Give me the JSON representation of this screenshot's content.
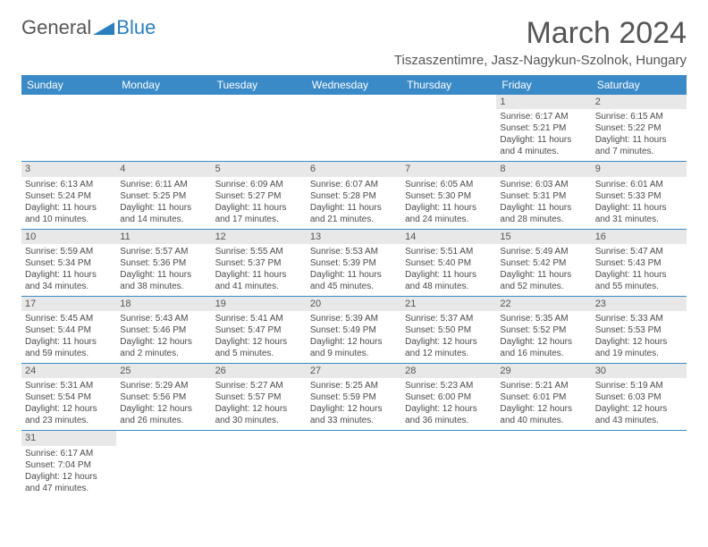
{
  "logo": {
    "text1": "General",
    "text2": "Blue"
  },
  "title": "March 2024",
  "location": "Tiszaszentimre, Jasz-Nagykun-Szolnok, Hungary",
  "colors": {
    "header_bg": "#3a8ac8",
    "header_text": "#ffffff",
    "daynum_bg": "#e8e8e8",
    "body_text": "#4a4a4a",
    "title_text": "#555555",
    "row_divider": "#3a8ac8",
    "background": "#ffffff",
    "logo_blue": "#2a7fbf"
  },
  "typography": {
    "title_fontsize": 34,
    "location_fontsize": 15,
    "dayheader_fontsize": 12,
    "cell_fontsize": 10,
    "font_family": "Arial"
  },
  "daysOfWeek": [
    "Sunday",
    "Monday",
    "Tuesday",
    "Wednesday",
    "Thursday",
    "Friday",
    "Saturday"
  ],
  "weeks": [
    [
      {
        "blank": true
      },
      {
        "blank": true
      },
      {
        "blank": true
      },
      {
        "blank": true
      },
      {
        "blank": true
      },
      {
        "n": "1",
        "sunrise": "Sunrise: 6:17 AM",
        "sunset": "Sunset: 5:21 PM",
        "day1": "Daylight: 11 hours",
        "day2": "and 4 minutes."
      },
      {
        "n": "2",
        "sunrise": "Sunrise: 6:15 AM",
        "sunset": "Sunset: 5:22 PM",
        "day1": "Daylight: 11 hours",
        "day2": "and 7 minutes."
      }
    ],
    [
      {
        "n": "3",
        "sunrise": "Sunrise: 6:13 AM",
        "sunset": "Sunset: 5:24 PM",
        "day1": "Daylight: 11 hours",
        "day2": "and 10 minutes."
      },
      {
        "n": "4",
        "sunrise": "Sunrise: 6:11 AM",
        "sunset": "Sunset: 5:25 PM",
        "day1": "Daylight: 11 hours",
        "day2": "and 14 minutes."
      },
      {
        "n": "5",
        "sunrise": "Sunrise: 6:09 AM",
        "sunset": "Sunset: 5:27 PM",
        "day1": "Daylight: 11 hours",
        "day2": "and 17 minutes."
      },
      {
        "n": "6",
        "sunrise": "Sunrise: 6:07 AM",
        "sunset": "Sunset: 5:28 PM",
        "day1": "Daylight: 11 hours",
        "day2": "and 21 minutes."
      },
      {
        "n": "7",
        "sunrise": "Sunrise: 6:05 AM",
        "sunset": "Sunset: 5:30 PM",
        "day1": "Daylight: 11 hours",
        "day2": "and 24 minutes."
      },
      {
        "n": "8",
        "sunrise": "Sunrise: 6:03 AM",
        "sunset": "Sunset: 5:31 PM",
        "day1": "Daylight: 11 hours",
        "day2": "and 28 minutes."
      },
      {
        "n": "9",
        "sunrise": "Sunrise: 6:01 AM",
        "sunset": "Sunset: 5:33 PM",
        "day1": "Daylight: 11 hours",
        "day2": "and 31 minutes."
      }
    ],
    [
      {
        "n": "10",
        "sunrise": "Sunrise: 5:59 AM",
        "sunset": "Sunset: 5:34 PM",
        "day1": "Daylight: 11 hours",
        "day2": "and 34 minutes."
      },
      {
        "n": "11",
        "sunrise": "Sunrise: 5:57 AM",
        "sunset": "Sunset: 5:36 PM",
        "day1": "Daylight: 11 hours",
        "day2": "and 38 minutes."
      },
      {
        "n": "12",
        "sunrise": "Sunrise: 5:55 AM",
        "sunset": "Sunset: 5:37 PM",
        "day1": "Daylight: 11 hours",
        "day2": "and 41 minutes."
      },
      {
        "n": "13",
        "sunrise": "Sunrise: 5:53 AM",
        "sunset": "Sunset: 5:39 PM",
        "day1": "Daylight: 11 hours",
        "day2": "and 45 minutes."
      },
      {
        "n": "14",
        "sunrise": "Sunrise: 5:51 AM",
        "sunset": "Sunset: 5:40 PM",
        "day1": "Daylight: 11 hours",
        "day2": "and 48 minutes."
      },
      {
        "n": "15",
        "sunrise": "Sunrise: 5:49 AM",
        "sunset": "Sunset: 5:42 PM",
        "day1": "Daylight: 11 hours",
        "day2": "and 52 minutes."
      },
      {
        "n": "16",
        "sunrise": "Sunrise: 5:47 AM",
        "sunset": "Sunset: 5:43 PM",
        "day1": "Daylight: 11 hours",
        "day2": "and 55 minutes."
      }
    ],
    [
      {
        "n": "17",
        "sunrise": "Sunrise: 5:45 AM",
        "sunset": "Sunset: 5:44 PM",
        "day1": "Daylight: 11 hours",
        "day2": "and 59 minutes."
      },
      {
        "n": "18",
        "sunrise": "Sunrise: 5:43 AM",
        "sunset": "Sunset: 5:46 PM",
        "day1": "Daylight: 12 hours",
        "day2": "and 2 minutes."
      },
      {
        "n": "19",
        "sunrise": "Sunrise: 5:41 AM",
        "sunset": "Sunset: 5:47 PM",
        "day1": "Daylight: 12 hours",
        "day2": "and 5 minutes."
      },
      {
        "n": "20",
        "sunrise": "Sunrise: 5:39 AM",
        "sunset": "Sunset: 5:49 PM",
        "day1": "Daylight: 12 hours",
        "day2": "and 9 minutes."
      },
      {
        "n": "21",
        "sunrise": "Sunrise: 5:37 AM",
        "sunset": "Sunset: 5:50 PM",
        "day1": "Daylight: 12 hours",
        "day2": "and 12 minutes."
      },
      {
        "n": "22",
        "sunrise": "Sunrise: 5:35 AM",
        "sunset": "Sunset: 5:52 PM",
        "day1": "Daylight: 12 hours",
        "day2": "and 16 minutes."
      },
      {
        "n": "23",
        "sunrise": "Sunrise: 5:33 AM",
        "sunset": "Sunset: 5:53 PM",
        "day1": "Daylight: 12 hours",
        "day2": "and 19 minutes."
      }
    ],
    [
      {
        "n": "24",
        "sunrise": "Sunrise: 5:31 AM",
        "sunset": "Sunset: 5:54 PM",
        "day1": "Daylight: 12 hours",
        "day2": "and 23 minutes."
      },
      {
        "n": "25",
        "sunrise": "Sunrise: 5:29 AM",
        "sunset": "Sunset: 5:56 PM",
        "day1": "Daylight: 12 hours",
        "day2": "and 26 minutes."
      },
      {
        "n": "26",
        "sunrise": "Sunrise: 5:27 AM",
        "sunset": "Sunset: 5:57 PM",
        "day1": "Daylight: 12 hours",
        "day2": "and 30 minutes."
      },
      {
        "n": "27",
        "sunrise": "Sunrise: 5:25 AM",
        "sunset": "Sunset: 5:59 PM",
        "day1": "Daylight: 12 hours",
        "day2": "and 33 minutes."
      },
      {
        "n": "28",
        "sunrise": "Sunrise: 5:23 AM",
        "sunset": "Sunset: 6:00 PM",
        "day1": "Daylight: 12 hours",
        "day2": "and 36 minutes."
      },
      {
        "n": "29",
        "sunrise": "Sunrise: 5:21 AM",
        "sunset": "Sunset: 6:01 PM",
        "day1": "Daylight: 12 hours",
        "day2": "and 40 minutes."
      },
      {
        "n": "30",
        "sunrise": "Sunrise: 5:19 AM",
        "sunset": "Sunset: 6:03 PM",
        "day1": "Daylight: 12 hours",
        "day2": "and 43 minutes."
      }
    ],
    [
      {
        "n": "31",
        "sunrise": "Sunrise: 6:17 AM",
        "sunset": "Sunset: 7:04 PM",
        "day1": "Daylight: 12 hours",
        "day2": "and 47 minutes."
      },
      {
        "blank": true
      },
      {
        "blank": true
      },
      {
        "blank": true
      },
      {
        "blank": true
      },
      {
        "blank": true
      },
      {
        "blank": true
      }
    ]
  ]
}
